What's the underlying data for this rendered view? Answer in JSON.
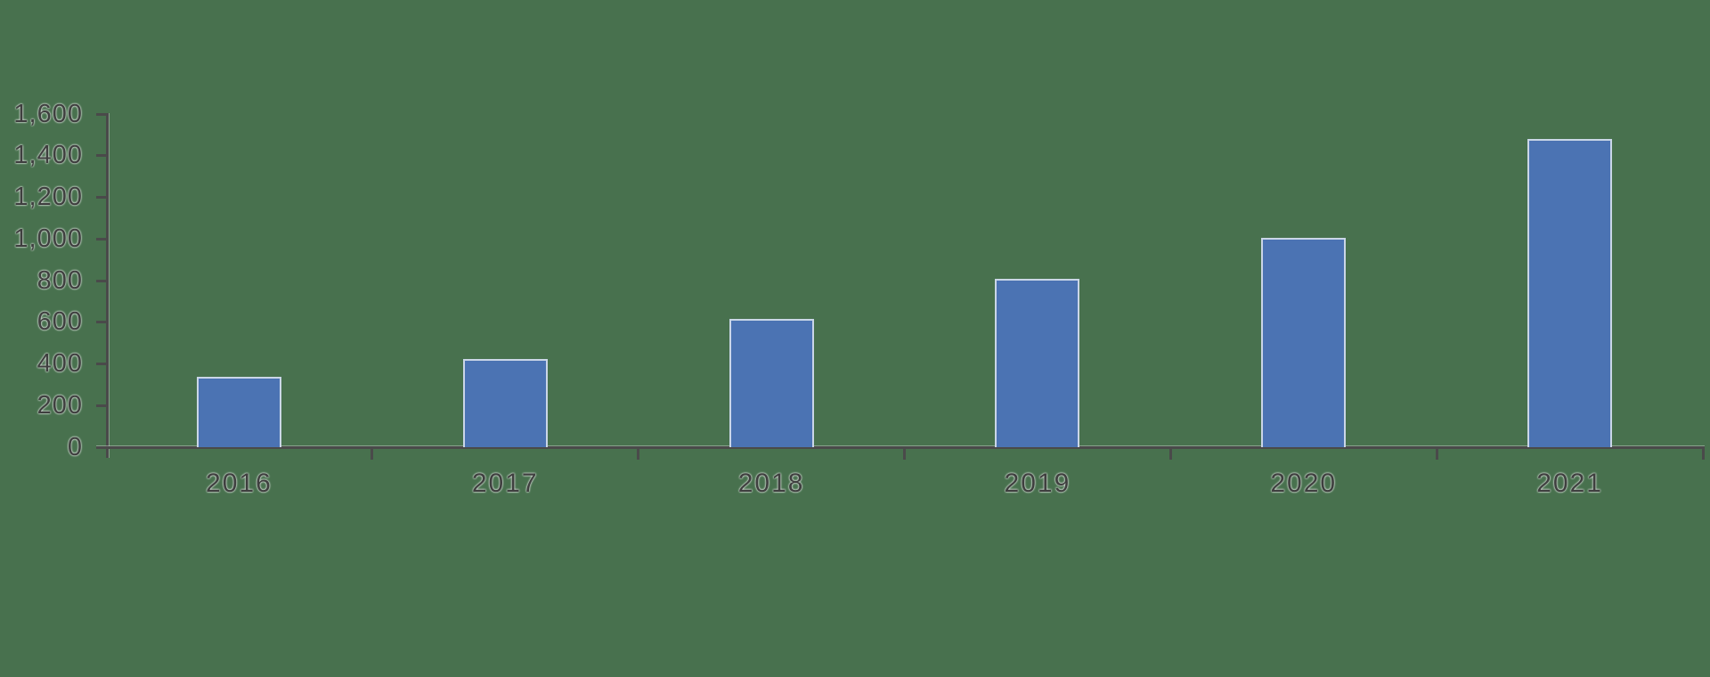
{
  "chart_data": {
    "type": "bar",
    "title": "",
    "xlabel": "",
    "ylabel": "",
    "categories": [
      "2016",
      "2017",
      "2018",
      "2019",
      "2020",
      "2021"
    ],
    "values": [
      340,
      425,
      615,
      810,
      1005,
      1480
    ],
    "series_name": "",
    "ylim": [
      0,
      1600
    ],
    "ytick_interval": 200,
    "ytick_labels": [
      "0",
      "200",
      "400",
      "600",
      "800",
      "1,000",
      "1,200",
      "1,400",
      "1,600"
    ],
    "grid": false,
    "legend": false,
    "bar_color": "#4b73b3",
    "bar_edge_color": "#e1e7f0",
    "axis_color": "#4a4a4a",
    "text_color": "#3f3f3f",
    "background_color": "#48714e"
  }
}
